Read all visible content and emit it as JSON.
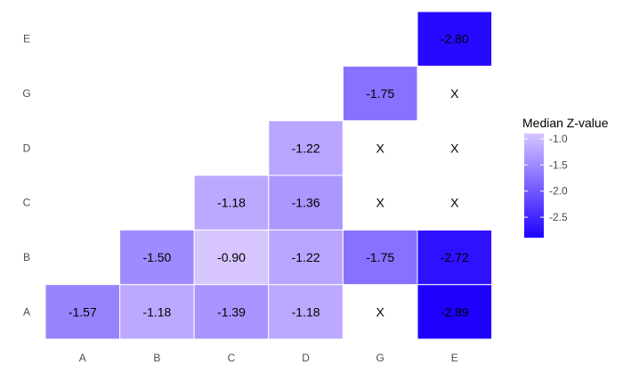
{
  "chart_data": {
    "type": "heatmap",
    "title": "",
    "xlabel": "",
    "ylabel": "",
    "x_categories": [
      "A",
      "B",
      "C",
      "D",
      "G",
      "E"
    ],
    "y_categories": [
      "A",
      "B",
      "C",
      "D",
      "G",
      "E"
    ],
    "cells": [
      {
        "x": "A",
        "y": "A",
        "value": -1.57,
        "label": "-1.57"
      },
      {
        "x": "B",
        "y": "A",
        "value": -1.18,
        "label": "-1.18"
      },
      {
        "x": "C",
        "y": "A",
        "value": -1.39,
        "label": "-1.39"
      },
      {
        "x": "D",
        "y": "A",
        "value": -1.18,
        "label": "-1.18"
      },
      {
        "x": "G",
        "y": "A",
        "value": null,
        "label": "X"
      },
      {
        "x": "E",
        "y": "A",
        "value": -2.89,
        "label": "-2.89"
      },
      {
        "x": "B",
        "y": "B",
        "value": -1.5,
        "label": "-1.50"
      },
      {
        "x": "C",
        "y": "B",
        "value": -0.9,
        "label": "-0.90"
      },
      {
        "x": "D",
        "y": "B",
        "value": -1.22,
        "label": "-1.22"
      },
      {
        "x": "G",
        "y": "B",
        "value": -1.75,
        "label": "-1.75"
      },
      {
        "x": "E",
        "y": "B",
        "value": -2.72,
        "label": "-2.72"
      },
      {
        "x": "C",
        "y": "C",
        "value": -1.18,
        "label": "-1.18"
      },
      {
        "x": "D",
        "y": "C",
        "value": -1.36,
        "label": "-1.36"
      },
      {
        "x": "G",
        "y": "C",
        "value": null,
        "label": "X"
      },
      {
        "x": "E",
        "y": "C",
        "value": null,
        "label": "X"
      },
      {
        "x": "D",
        "y": "D",
        "value": -1.22,
        "label": "-1.22"
      },
      {
        "x": "G",
        "y": "D",
        "value": null,
        "label": "X"
      },
      {
        "x": "E",
        "y": "D",
        "value": null,
        "label": "X"
      },
      {
        "x": "G",
        "y": "G",
        "value": -1.75,
        "label": "-1.75"
      },
      {
        "x": "E",
        "y": "G",
        "value": null,
        "label": "X"
      },
      {
        "x": "E",
        "y": "E",
        "value": -2.8,
        "label": "-2.80"
      }
    ],
    "legend": {
      "title": "Median Z-value",
      "position": "right",
      "ticks": [
        "-1.0",
        "-1.5",
        "-2.0",
        "-2.5"
      ],
      "tick_values": [
        -1.0,
        -1.5,
        -2.0,
        -2.5
      ],
      "range": [
        -2.89,
        -0.9
      ]
    },
    "colors": {
      "high": "#d6c5ff",
      "low": "#1f00ff",
      "missing": "#ffffff",
      "grid": "#ffffff",
      "axis_text": "#4d4d4d",
      "cell_text": "#000000",
      "background": "#ffffff"
    },
    "grid": false
  }
}
